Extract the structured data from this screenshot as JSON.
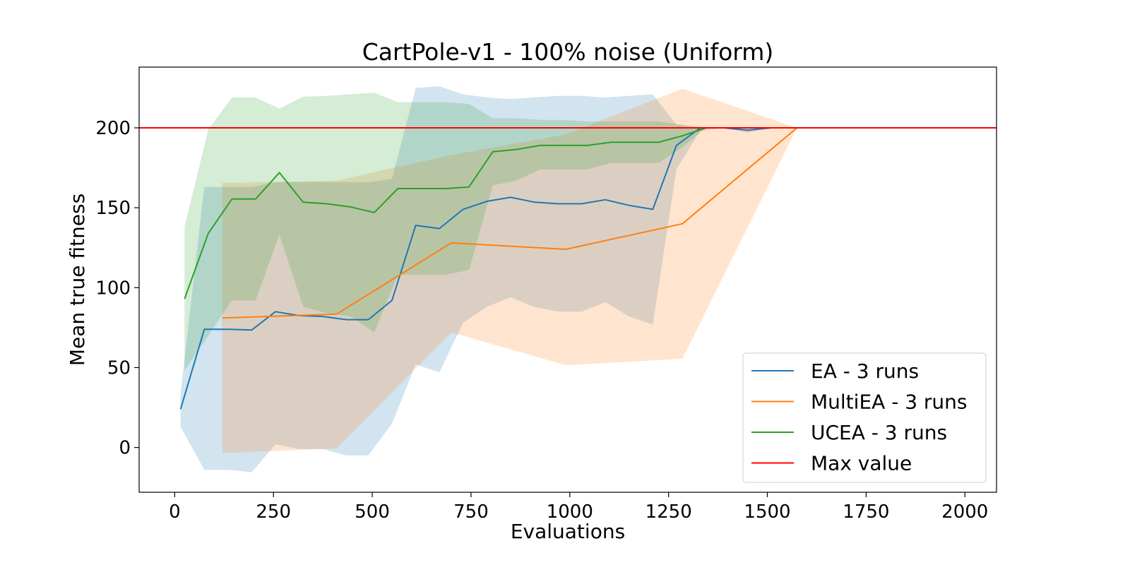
{
  "chart_data": {
    "type": "line",
    "title": "CartPole-v1 - 100% noise (Uniform)",
    "xlabel": "Evaluations",
    "ylabel": "Mean true fitness",
    "xlim": [
      -90,
      2080
    ],
    "ylim": [
      -28,
      238
    ],
    "xticks": [
      0,
      250,
      500,
      750,
      1000,
      1250,
      1500,
      1750,
      2000
    ],
    "yticks": [
      0,
      50,
      100,
      150,
      200
    ],
    "grid": false,
    "legend_position": "lower-right",
    "series": [
      {
        "name": "EA - 3 runs",
        "color": "#1f77b4",
        "x": [
          15,
          75,
          135,
          195,
          255,
          315,
          375,
          435,
          490,
          550,
          610,
          670,
          730,
          790,
          850,
          910,
          970,
          1030,
          1090,
          1150,
          1210,
          1270,
          1330,
          1390,
          1450,
          1510,
          1570,
          1630,
          1690,
          1750,
          1810,
          1870,
          1930,
          1990
        ],
        "y": [
          24,
          74,
          74,
          73.5,
          85,
          82.5,
          82,
          80,
          80,
          92,
          139,
          137,
          149,
          154,
          156.5,
          153.5,
          152.5,
          152.5,
          155,
          151.5,
          149,
          189,
          200,
          200,
          198.5,
          200,
          200,
          200,
          200,
          200,
          200,
          200,
          200,
          200
        ],
        "band_low": [
          13,
          -14,
          -14,
          -15.5,
          2,
          -1,
          -1,
          -5,
          -5,
          15,
          52,
          47,
          78,
          88,
          94,
          88,
          85,
          85,
          91,
          82,
          77,
          174,
          198,
          200,
          197,
          200,
          200,
          200,
          200,
          200,
          200,
          200,
          200,
          200
        ],
        "band_high": [
          34,
          163,
          163,
          163,
          166,
          166,
          166,
          166,
          166,
          168,
          225,
          226,
          221,
          219,
          218,
          219,
          220,
          220,
          219,
          220,
          221,
          202,
          200,
          200,
          200,
          200,
          200,
          200,
          200,
          200,
          200,
          200,
          200,
          200
        ]
      },
      {
        "name": "MultiEA - 3 runs",
        "color": "#ff7f0e",
        "x": [
          120,
          410,
          700,
          990,
          1285,
          1575,
          1870
        ],
        "y": [
          81,
          83.5,
          128,
          124,
          140,
          200,
          200
        ],
        "band_low": [
          -3.5,
          -0.5,
          72,
          51.5,
          55.5,
          200,
          200
        ],
        "band_high": [
          165.5,
          167,
          183,
          196,
          224.5,
          200,
          200
        ]
      },
      {
        "name": "UCEA - 3 runs",
        "color": "#2ca02c",
        "x": [
          25,
          85,
          145,
          205,
          265,
          325,
          385,
          445,
          505,
          565,
          625,
          685,
          745,
          805,
          865,
          925,
          985,
          1045,
          1105,
          1165,
          1225,
          1285,
          1345,
          1405,
          1465,
          1525,
          1585,
          1645,
          1705,
          1765,
          1825,
          1885,
          1945
        ],
        "y": [
          93,
          134,
          155.5,
          155.5,
          172,
          153.5,
          152.5,
          150.5,
          147,
          162,
          162,
          162,
          163,
          185,
          186.5,
          189,
          189,
          189,
          191,
          191,
          191,
          195,
          200,
          200,
          200,
          200,
          200,
          200,
          200,
          200,
          200,
          200,
          200
        ],
        "band_low": [
          48,
          70,
          92,
          92,
          133,
          88,
          84,
          82,
          72,
          108,
          108,
          108,
          111,
          164,
          167,
          174,
          174,
          174,
          178,
          178,
          178,
          188,
          200,
          200,
          200,
          200,
          200,
          200,
          200,
          200,
          200,
          200,
          200
        ],
        "band_high": [
          138,
          199,
          219,
          219,
          212,
          219.5,
          220,
          221,
          222,
          216,
          216,
          216,
          215,
          206,
          206,
          205,
          205,
          204,
          204,
          204,
          204,
          202,
          200,
          200,
          200,
          200,
          200,
          200,
          200,
          200,
          200,
          200,
          200
        ]
      },
      {
        "name": "Max value",
        "color": "#ff0000",
        "x": [
          -90,
          2080
        ],
        "y": [
          200,
          200
        ]
      }
    ]
  }
}
